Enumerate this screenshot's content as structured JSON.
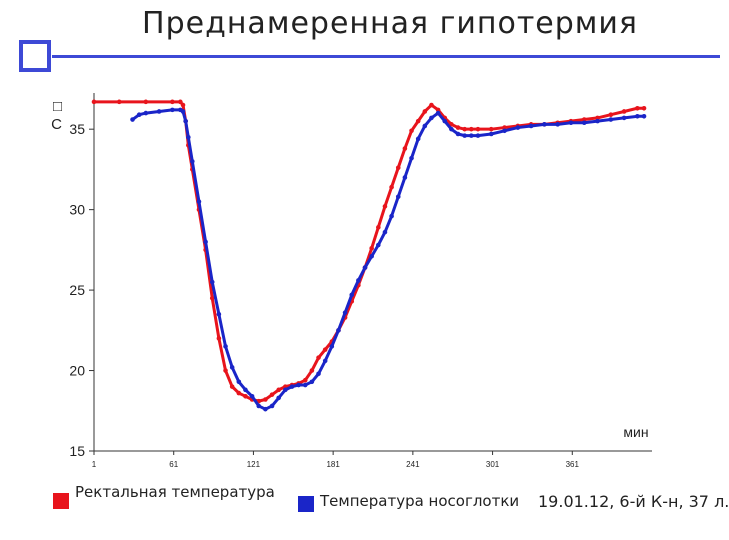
{
  "page": {
    "title": "Преднамеренная гипотермия",
    "note": "19.01.12, 6-й К-н, 37 л."
  },
  "chart_data": {
    "type": "line",
    "title": "Преднамеренная гипотермия",
    "ylabel": "□\nC",
    "ylabel_symbol": "□",
    "ylabel_unit": "C",
    "xlabel": "мин",
    "xlim": [
      1,
      421
    ],
    "ylim": [
      15,
      37
    ],
    "yticks": [
      15,
      20,
      25,
      30,
      35
    ],
    "xticks": [
      1,
      61,
      121,
      181,
      241,
      301,
      361
    ],
    "grid": false,
    "legend_position": "bottom",
    "series": [
      {
        "name": "Ректальная температура",
        "color": "#e8141c",
        "x": [
          1,
          20,
          40,
          60,
          66,
          68,
          70,
          72,
          75,
          80,
          85,
          90,
          95,
          100,
          105,
          110,
          115,
          120,
          125,
          130,
          135,
          140,
          145,
          150,
          155,
          160,
          165,
          170,
          175,
          180,
          185,
          190,
          195,
          200,
          205,
          210,
          215,
          220,
          225,
          230,
          235,
          240,
          245,
          250,
          255,
          260,
          265,
          270,
          275,
          280,
          285,
          290,
          300,
          310,
          320,
          330,
          340,
          350,
          360,
          370,
          380,
          390,
          400,
          410,
          415
        ],
        "y": [
          36.7,
          36.7,
          36.7,
          36.7,
          36.7,
          36.5,
          35.5,
          34.0,
          32.5,
          30.0,
          27.5,
          24.5,
          22.0,
          20.0,
          19.0,
          18.6,
          18.4,
          18.2,
          18.1,
          18.2,
          18.5,
          18.8,
          19.0,
          19.1,
          19.2,
          19.4,
          20.0,
          20.8,
          21.3,
          21.8,
          22.5,
          23.3,
          24.3,
          25.3,
          26.4,
          27.6,
          28.9,
          30.2,
          31.4,
          32.6,
          33.8,
          34.9,
          35.5,
          36.1,
          36.5,
          36.2,
          35.7,
          35.3,
          35.1,
          35.0,
          35.0,
          35.0,
          35.0,
          35.1,
          35.2,
          35.3,
          35.3,
          35.4,
          35.5,
          35.6,
          35.7,
          35.9,
          36.1,
          36.3,
          36.3
        ]
      },
      {
        "name": "Температура носоглотки",
        "color": "#1a25c8",
        "x": [
          30,
          35,
          40,
          50,
          60,
          66,
          68,
          70,
          72,
          75,
          80,
          85,
          90,
          95,
          100,
          105,
          110,
          115,
          120,
          125,
          130,
          135,
          140,
          145,
          150,
          155,
          160,
          165,
          170,
          175,
          180,
          185,
          190,
          195,
          200,
          205,
          210,
          215,
          220,
          225,
          230,
          235,
          240,
          245,
          250,
          255,
          260,
          265,
          270,
          275,
          280,
          285,
          290,
          300,
          310,
          320,
          330,
          340,
          350,
          360,
          370,
          380,
          390,
          400,
          410,
          415
        ],
        "y": [
          35.6,
          35.9,
          36.0,
          36.1,
          36.2,
          36.2,
          36.1,
          35.5,
          34.5,
          33.0,
          30.5,
          28.0,
          25.5,
          23.5,
          21.5,
          20.2,
          19.3,
          18.8,
          18.4,
          17.8,
          17.6,
          17.8,
          18.3,
          18.8,
          19.0,
          19.1,
          19.1,
          19.3,
          19.8,
          20.6,
          21.5,
          22.5,
          23.6,
          24.7,
          25.6,
          26.4,
          27.1,
          27.8,
          28.6,
          29.6,
          30.8,
          32.0,
          33.2,
          34.4,
          35.2,
          35.7,
          36.0,
          35.5,
          35.0,
          34.7,
          34.6,
          34.6,
          34.6,
          34.7,
          34.9,
          35.1,
          35.2,
          35.3,
          35.3,
          35.4,
          35.4,
          35.5,
          35.6,
          35.7,
          35.8,
          35.8
        ]
      }
    ]
  }
}
